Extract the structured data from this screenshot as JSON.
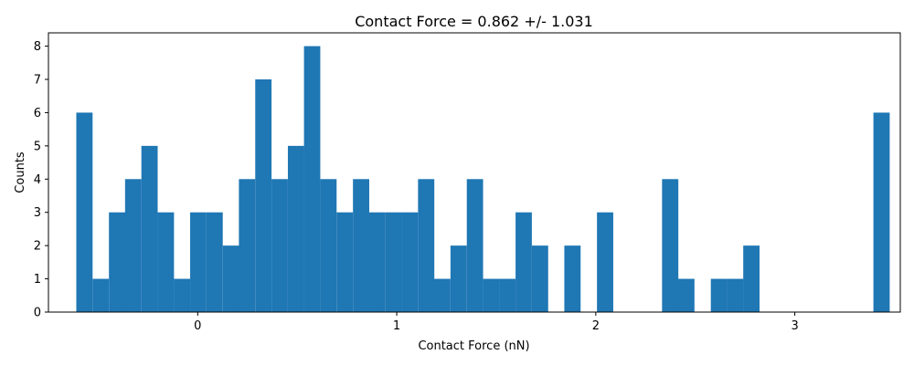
{
  "chart_data": {
    "type": "bar",
    "title": "Contact Force = 0.862 +/- 1.031",
    "xlabel": "Contact Force (nN)",
    "ylabel": "Counts",
    "bin_width": 0.0818,
    "x_ticks": [
      0,
      1,
      2,
      3
    ],
    "y_ticks": [
      0,
      1,
      2,
      3,
      4,
      5,
      6,
      7,
      8
    ],
    "xlim": [
      -0.75,
      3.53
    ],
    "ylim": [
      0,
      8.4
    ],
    "bar_color": "#1f77b4",
    "bin_starts": [
      -0.61,
      -0.528,
      -0.446,
      -0.365,
      -0.283,
      -0.201,
      -0.12,
      -0.038,
      0.044,
      0.126,
      0.207,
      0.289,
      0.371,
      0.453,
      0.534,
      0.616,
      0.698,
      0.78,
      0.861,
      0.943,
      1.025,
      1.107,
      1.188,
      1.27,
      1.352,
      1.434,
      1.515,
      1.597,
      1.679,
      1.76,
      1.842,
      1.924,
      2.006,
      2.087,
      2.169,
      2.251,
      2.333,
      2.414,
      2.496,
      2.578,
      2.66,
      2.741,
      2.823,
      2.905,
      2.987,
      3.068,
      3.15,
      3.232,
      3.314,
      3.395
    ],
    "values": [
      6,
      1,
      3,
      4,
      5,
      3,
      1,
      3,
      3,
      2,
      4,
      7,
      4,
      5,
      8,
      4,
      3,
      4,
      3,
      3,
      3,
      4,
      1,
      2,
      4,
      1,
      1,
      3,
      2,
      0,
      2,
      0,
      3,
      0,
      0,
      0,
      4,
      1,
      0,
      1,
      1,
      2,
      0,
      0,
      0,
      0,
      0,
      0,
      0,
      6
    ]
  }
}
